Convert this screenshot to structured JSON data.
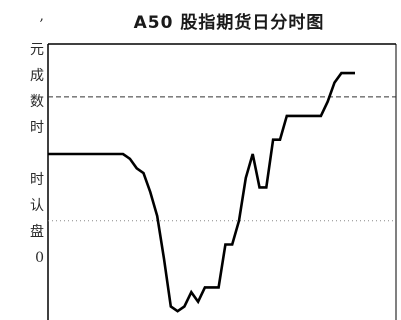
{
  "left_article": {
    "fragments": [
      ",",
      "元",
      "成",
      "数",
      "时",
      "",
      "时",
      "认",
      "盘",
      "0"
    ]
  },
  "chart_data": {
    "type": "line",
    "title": "A50 股指期货日分时图",
    "x": [
      0,
      1,
      2,
      3,
      4,
      5,
      6,
      7,
      8,
      9,
      10,
      11,
      12,
      13,
      14,
      15,
      16,
      17,
      18,
      19,
      20,
      21,
      22,
      23,
      24,
      25,
      26,
      27,
      28,
      29,
      30,
      31,
      32,
      33,
      34,
      35,
      36,
      37,
      38,
      39,
      40,
      41,
      42,
      43,
      44,
      45
    ],
    "y": [
      34,
      34,
      34,
      34,
      34,
      34,
      34,
      34,
      34,
      34,
      34,
      34,
      33,
      31,
      30,
      26,
      21,
      12,
      2,
      1,
      2,
      5,
      3,
      6,
      6,
      6,
      15,
      15,
      20,
      29,
      34,
      27,
      27,
      37,
      37,
      42,
      42,
      42,
      42,
      42,
      42,
      45,
      49,
      51,
      51,
      51
    ],
    "xlabel": "",
    "ylabel": "",
    "ylim": [
      0,
      55
    ],
    "reference_lines": [
      {
        "y": 46,
        "style": "dashed"
      },
      {
        "y": 20,
        "style": "dotted"
      }
    ],
    "grid": false,
    "legend": "none",
    "line_color": "#000000"
  }
}
